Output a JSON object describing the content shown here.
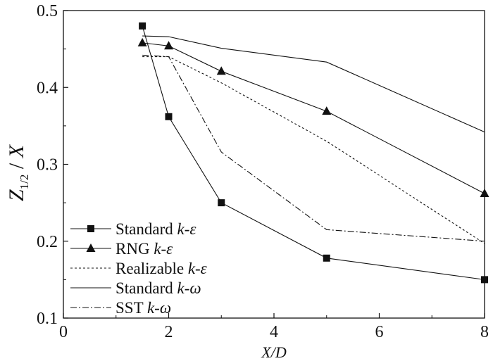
{
  "chart_data": {
    "type": "line",
    "xlabel": "X/D",
    "ylabel": "Z1/2 / X",
    "xlim": [
      0,
      8
    ],
    "ylim": [
      0.1,
      0.5
    ],
    "xticks": [
      "0",
      "2",
      "4",
      "6",
      "8"
    ],
    "yticks": [
      "0.1",
      "0.2",
      "0.3",
      "0.4",
      "0.5"
    ],
    "grid": false,
    "legend_position": "bottom-left",
    "series": [
      {
        "name": "Standard k-ε",
        "name_plain": "Standard ",
        "name_italic": "k-ε",
        "marker": "square",
        "dash": "solid",
        "x": [
          1.5,
          2,
          3,
          5,
          8
        ],
        "y": [
          0.48,
          0.362,
          0.25,
          0.178,
          0.15
        ]
      },
      {
        "name": "RNG k-ε",
        "name_plain": "RNG ",
        "name_italic": "k-ε",
        "marker": "triangle",
        "dash": "solid",
        "x": [
          1.5,
          2,
          3,
          5,
          8
        ],
        "y": [
          0.458,
          0.454,
          0.421,
          0.369,
          0.262
        ]
      },
      {
        "name": "Realizable k-ε",
        "name_plain": "Realizable ",
        "name_italic": "k-ε",
        "marker": "none",
        "dash": "dotted",
        "x": [
          1.5,
          2,
          3,
          5,
          8
        ],
        "y": [
          0.44,
          0.44,
          0.406,
          0.33,
          0.197
        ]
      },
      {
        "name": "Standard k-ω",
        "name_plain": "Standard ",
        "name_italic": "k-ω",
        "marker": "none",
        "dash": "solid",
        "x": [
          1.5,
          2,
          3,
          5,
          8
        ],
        "y": [
          0.467,
          0.466,
          0.451,
          0.433,
          0.342
        ]
      },
      {
        "name": "SST k-ω",
        "name_plain": "SST ",
        "name_italic": "k-ω",
        "marker": "none",
        "dash": "dashdot",
        "x": [
          1.5,
          2,
          3,
          5,
          8
        ],
        "y": [
          0.442,
          0.44,
          0.316,
          0.215,
          0.2
        ]
      }
    ]
  }
}
